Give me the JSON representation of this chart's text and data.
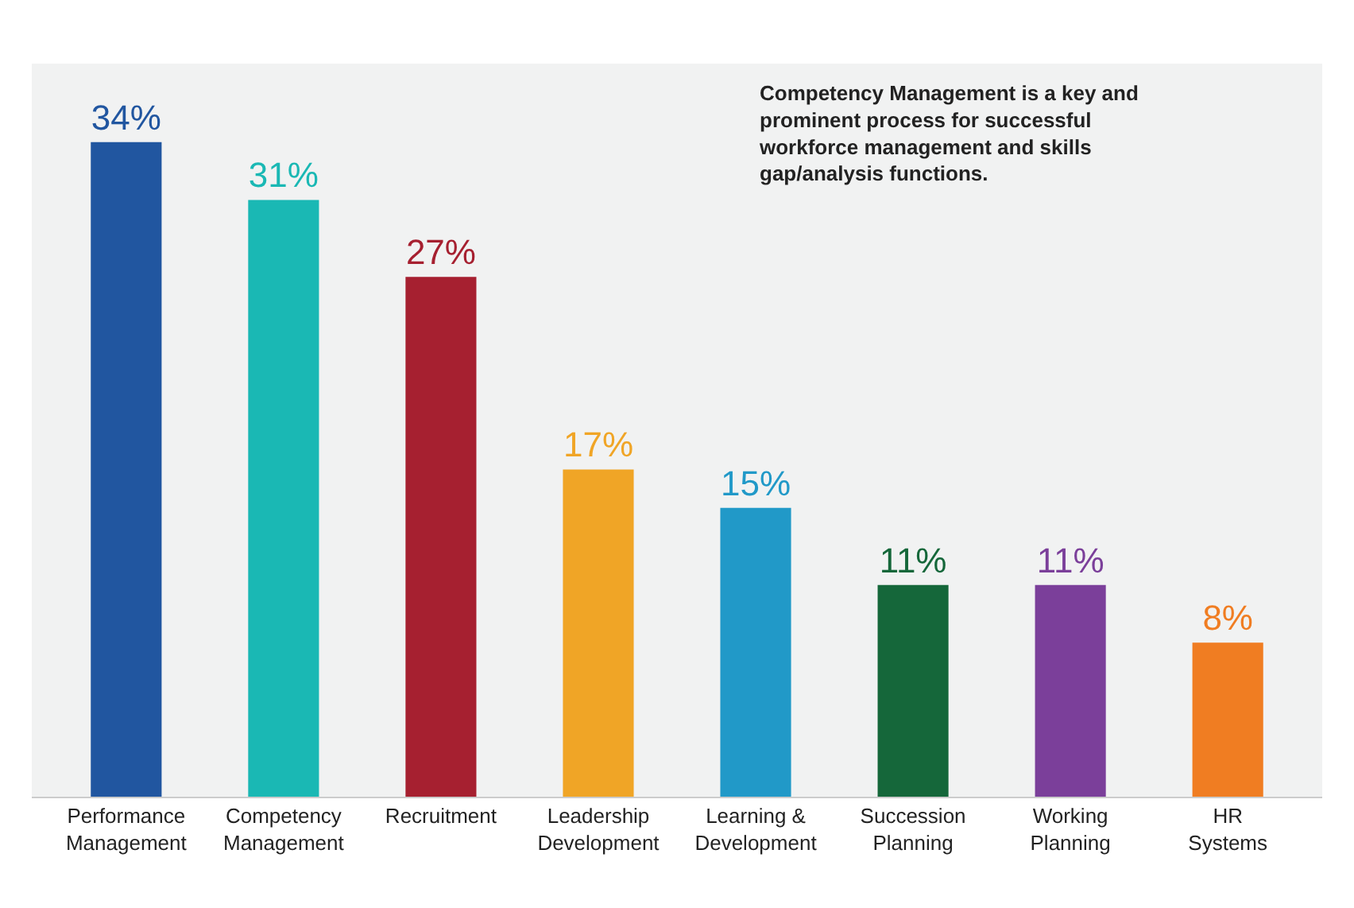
{
  "chart_data": {
    "type": "bar",
    "categories": [
      "Performance Management",
      "Competency Management",
      "Recruitment",
      "Leadership Development",
      "Learning & Development",
      "Succession Planning",
      "Working Planning",
      "HR Systems"
    ],
    "values": [
      34,
      31,
      27,
      17,
      15,
      11,
      11,
      8
    ],
    "value_labels": [
      "34%",
      "31%",
      "27%",
      "17%",
      "15%",
      "11%",
      "11%",
      "8%"
    ],
    "colors": [
      "#2156a0",
      "#1ab8b4",
      "#a62030",
      "#f0a526",
      "#2199c8",
      "#15673a",
      "#7b3f9a",
      "#f07d22"
    ],
    "annotations": [
      "Competency Management is a key and prominent process for successful workforce management and skills gap/analysis functions."
    ],
    "legend": false
  }
}
